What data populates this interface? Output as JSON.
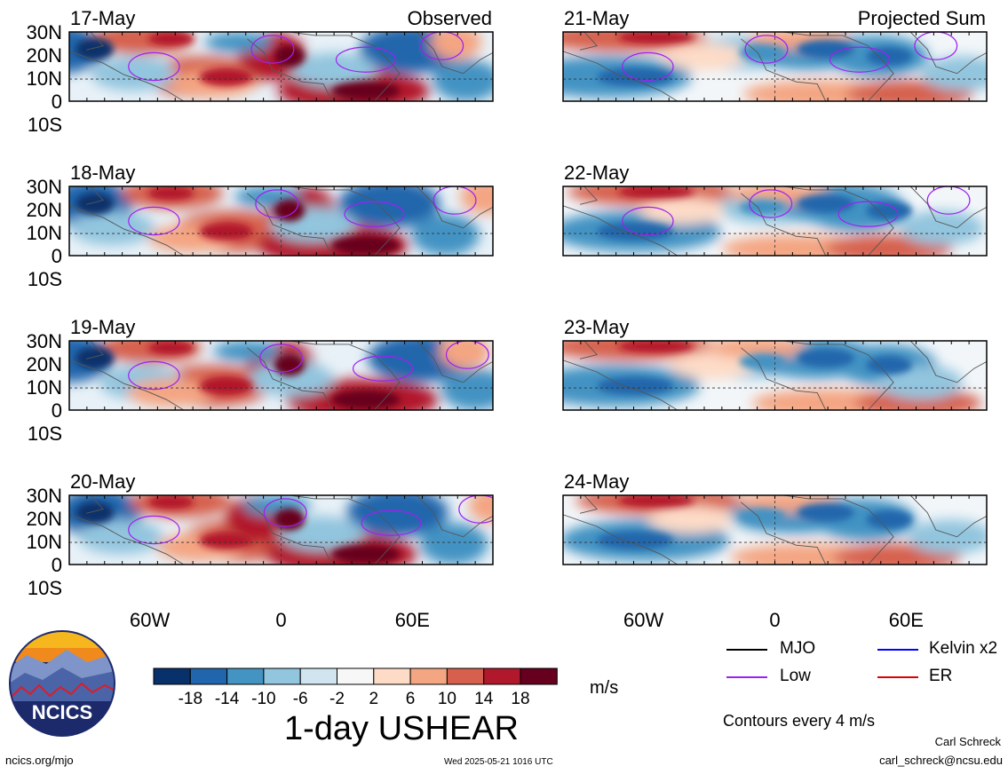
{
  "panels": [
    {
      "date": "17-May",
      "corner_label": "Observed",
      "column": "observed",
      "row": 0
    },
    {
      "date": "18-May",
      "corner_label": "",
      "column": "observed",
      "row": 1
    },
    {
      "date": "19-May",
      "corner_label": "",
      "column": "observed",
      "row": 2
    },
    {
      "date": "20-May",
      "corner_label": "",
      "column": "observed",
      "row": 3
    },
    {
      "date": "21-May",
      "corner_label": "Projected Sum",
      "column": "projected",
      "row": 0
    },
    {
      "date": "22-May",
      "corner_label": "",
      "column": "projected",
      "row": 1
    },
    {
      "date": "23-May",
      "corner_label": "",
      "column": "projected",
      "row": 2
    },
    {
      "date": "24-May",
      "corner_label": "",
      "column": "projected",
      "row": 3
    }
  ],
  "lat_labels": [
    "30N",
    "20N",
    "10N",
    "0",
    "10S"
  ],
  "lon_labels": [
    "60W",
    "0",
    "60E"
  ],
  "colorbar": {
    "colors": [
      "#08306b",
      "#2166ac",
      "#4393c3",
      "#92c5de",
      "#d1e5f0",
      "#f7f7f7",
      "#fddbc7",
      "#f4a582",
      "#d6604d",
      "#b2182b",
      "#67001f"
    ],
    "tick_labels": [
      "-18",
      "-14",
      "-10",
      "-6",
      "-2",
      "2",
      "6",
      "10",
      "14",
      "18"
    ]
  },
  "unit": "m/s",
  "title": "1-day USHEAR",
  "legend": [
    {
      "label": "MJO",
      "color": "#000000"
    },
    {
      "label": "Kelvin x2",
      "color": "#0000ff"
    },
    {
      "label": "Low",
      "color": "#a020f0"
    },
    {
      "label": "ER",
      "color": "#e00000"
    }
  ],
  "contour_note": "Contours every 4 m/s",
  "logo": {
    "text": "NCICS"
  },
  "footer": {
    "site": "ncics.org/mjo",
    "timestamp": "Wed 2025-05-21 1016 UTC",
    "author": "Carl Schreck",
    "email": "carl_schreck@ncsu.edu"
  }
}
